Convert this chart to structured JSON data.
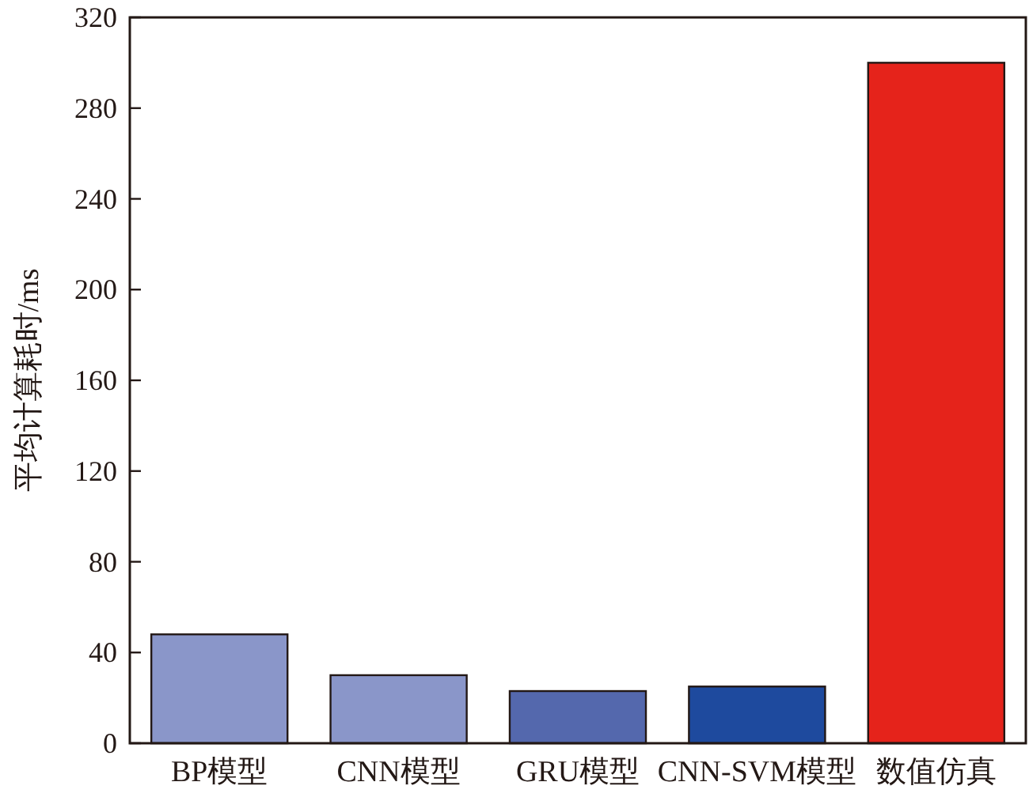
{
  "chart_data": {
    "type": "bar",
    "ylabel": "平均计算耗时/ms",
    "categories": [
      "BP模型",
      "CNN模型",
      "GRU模型",
      "CNN-SVM模型",
      "数值仿真"
    ],
    "values": [
      48,
      30,
      23,
      25,
      300
    ],
    "colors": [
      "#8a96c9",
      "#8a96c9",
      "#5468ad",
      "#1e4a9e",
      "#e5231b"
    ],
    "ylim": [
      0,
      320
    ],
    "yticks": [
      0,
      40,
      80,
      120,
      160,
      200,
      240,
      280,
      320
    ],
    "grid": false
  }
}
